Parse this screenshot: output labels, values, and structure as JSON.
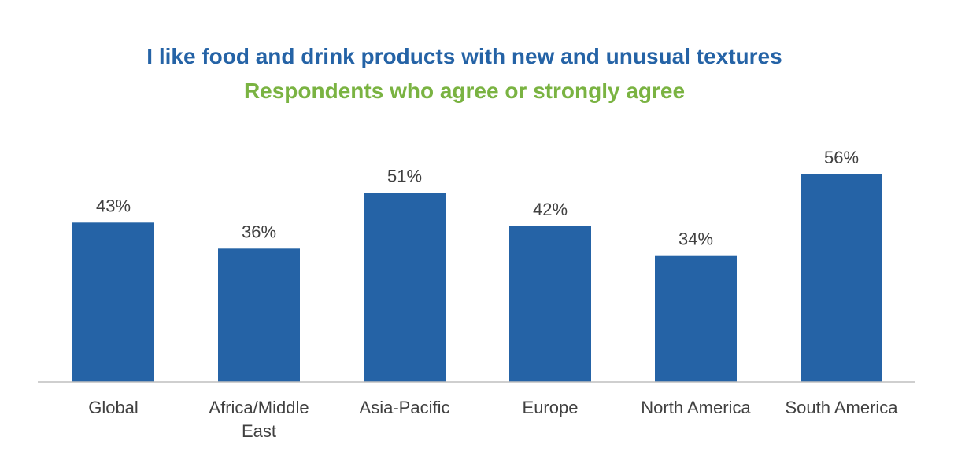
{
  "chart_data": {
    "type": "bar",
    "title": "I like food and drink products with new and unusual textures",
    "subtitle": "Respondents who agree or strongly agree",
    "categories": [
      "Global",
      "Africa/Middle East",
      "Asia-Pacific",
      "Europe",
      "North America",
      "South America"
    ],
    "category_lines": [
      [
        "Global"
      ],
      [
        "Africa/Middle",
        "East"
      ],
      [
        "Asia-Pacific"
      ],
      [
        "Europe"
      ],
      [
        "North America"
      ],
      [
        "South America"
      ]
    ],
    "values": [
      43,
      36,
      51,
      42,
      34,
      56
    ],
    "value_labels": [
      "43%",
      "36%",
      "51%",
      "42%",
      "34%",
      "56%"
    ],
    "ylim": [
      0,
      60
    ],
    "grid": false,
    "legend": "none",
    "colors": {
      "bar": "#2563a6",
      "title": "#2563a6",
      "subtitle": "#7ab342",
      "text": "#404040",
      "axis": "#bfbfbf"
    }
  }
}
